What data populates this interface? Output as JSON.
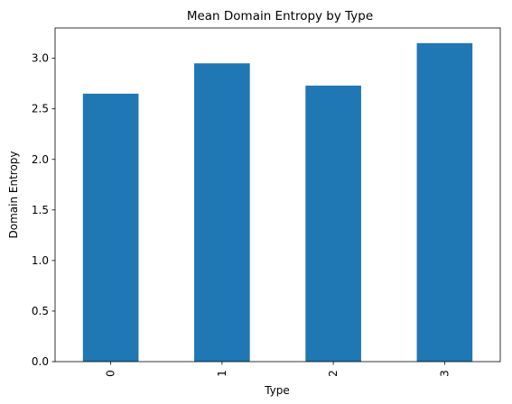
{
  "chart_data": {
    "type": "bar",
    "title": "Mean Domain Entropy by Type",
    "xlabel": "Type",
    "ylabel": "Domain Entropy",
    "categories": [
      "0",
      "1",
      "2",
      "3"
    ],
    "values": [
      2.65,
      2.95,
      2.73,
      3.15
    ],
    "ylim": [
      0,
      3.3
    ],
    "yticks": [
      "0.0",
      "0.5",
      "1.0",
      "1.5",
      "2.0",
      "2.5",
      "3.0"
    ],
    "xtick_rotation": "vertical",
    "grid": false,
    "legend": "none",
    "bar_color": "#1f77b4"
  }
}
